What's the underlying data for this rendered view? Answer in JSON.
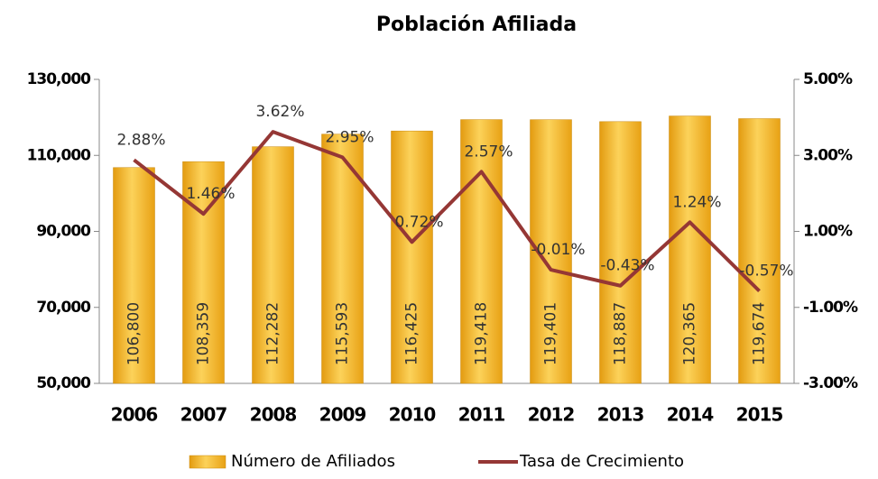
{
  "chart_data": {
    "type": "bar",
    "title": "Población Afiliada",
    "categories": [
      "2006",
      "2007",
      "2008",
      "2009",
      "2010",
      "2011",
      "2012",
      "2013",
      "2014",
      "2015"
    ],
    "series": [
      {
        "name": "Número de Afiliados",
        "color": "#f2b227",
        "type": "bar",
        "values": [
          106800,
          108359,
          112282,
          115593,
          116425,
          119418,
          119401,
          118887,
          120365,
          119674
        ],
        "value_labels": [
          "106,800",
          "108,359",
          "112,282",
          "115,593",
          "116,425",
          "119,418",
          "119,401",
          "118,887",
          "120,365",
          "119,674"
        ]
      },
      {
        "name": "Tasa de Crecimiento",
        "color": "#953735",
        "type": "line",
        "axis": "y2",
        "values": [
          2.88,
          1.46,
          3.62,
          2.95,
          0.72,
          2.57,
          -0.01,
          -0.43,
          1.24,
          -0.57
        ],
        "value_labels": [
          "2.88%",
          "1.46%",
          "3.62%",
          "2.95%",
          "0.72%",
          "2.57%",
          "-0.01%",
          "-0.43%",
          "1.24%",
          "-0.57%"
        ]
      }
    ],
    "ylim": [
      50000,
      130000
    ],
    "yticks": [
      {
        "value": 50000,
        "label": "50,000"
      },
      {
        "value": 70000,
        "label": "70,000"
      },
      {
        "value": 90000,
        "label": "90,000"
      },
      {
        "value": 110000,
        "label": "110,000"
      },
      {
        "value": 130000,
        "label": "130,000"
      }
    ],
    "y2lim": [
      -3,
      5
    ],
    "y2ticks": [
      {
        "value": -3,
        "label": "-3.00%"
      },
      {
        "value": -1,
        "label": "-1.00%"
      },
      {
        "value": 1,
        "label": "1.00%"
      },
      {
        "value": 3,
        "label": "3.00%"
      },
      {
        "value": 5,
        "label": "5.00%"
      }
    ],
    "grid": false,
    "legend": "bottom"
  }
}
